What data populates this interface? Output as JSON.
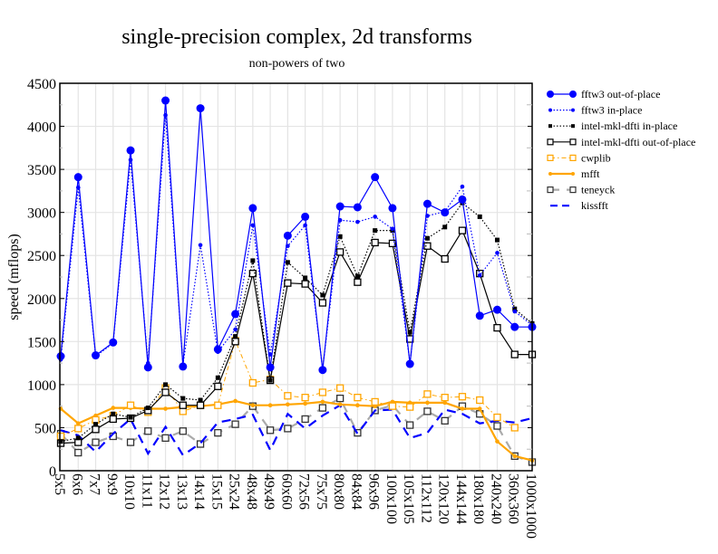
{
  "chart_data": {
    "type": "line",
    "title": "single-precision complex, 2d transforms",
    "subtitle": "non-powers of two",
    "xlabel": "",
    "ylabel": "speed (mflops)",
    "ylim": [
      0,
      4500
    ],
    "yticks": [
      0,
      500,
      1000,
      1500,
      2000,
      2500,
      3000,
      3500,
      4000,
      4500
    ],
    "ytick_labels": [
      "0",
      "500",
      "1000",
      "1500",
      "2000",
      "2500",
      "3000",
      "3500",
      "4000",
      "4500"
    ],
    "grid": true,
    "legend_position": "right",
    "categories": [
      "5x5",
      "6x6",
      "7x7",
      "9x9",
      "10x10",
      "11x11",
      "12x12",
      "13x13",
      "14x14",
      "15x15",
      "25x24",
      "48x48",
      "49x49",
      "60x60",
      "72x56",
      "75x75",
      "80x80",
      "84x84",
      "96x96",
      "100x100",
      "105x105",
      "112x112",
      "120x120",
      "144x144",
      "180x180",
      "240x240",
      "360x360",
      "1000x1000"
    ],
    "series": [
      {
        "name": "fftw3 out-of-place",
        "color": "#0000ff",
        "style": "solid-bigdot",
        "values": [
          1330,
          3410,
          1340,
          1490,
          3720,
          1200,
          4300,
          1210,
          4210,
          1410,
          1820,
          3050,
          1200,
          2730,
          2950,
          1170,
          3070,
          3060,
          3410,
          3050,
          1240,
          3100,
          3000,
          3150,
          1800,
          1870,
          1670,
          1670
        ]
      },
      {
        "name": "fftw3 in-place",
        "color": "#0000ff",
        "style": "dotted-smalldot",
        "values": [
          1290,
          3290,
          1330,
          1480,
          3610,
          1250,
          4130,
          1230,
          2620,
          1380,
          1640,
          2850,
          1350,
          2610,
          2850,
          1180,
          2910,
          2890,
          2950,
          2810,
          1250,
          2960,
          3010,
          3300,
          2270,
          2530,
          1850,
          1690
        ]
      },
      {
        "name": "intel-mkl-dfti in-place",
        "color": "#000000",
        "style": "dotted-filledsquare",
        "values": [
          340,
          380,
          540,
          660,
          620,
          730,
          1000,
          840,
          820,
          1080,
          1560,
          2440,
          1050,
          2420,
          2240,
          2040,
          2720,
          2260,
          2790,
          2790,
          1610,
          2700,
          2830,
          3110,
          2950,
          2680,
          1880,
          1710
        ]
      },
      {
        "name": "intel-mkl-dfti out-of-place",
        "color": "#000000",
        "style": "solid-opensquare",
        "values": [
          320,
          330,
          480,
          600,
          610,
          700,
          910,
          760,
          760,
          980,
          1500,
          2290,
          1050,
          2180,
          2170,
          1950,
          2540,
          2190,
          2650,
          2640,
          1530,
          2610,
          2460,
          2790,
          2290,
          1660,
          1350,
          1350
        ]
      },
      {
        "name": "cwplib",
        "color": "#ffa500",
        "style": "dashdot-opensquare",
        "values": [
          400,
          490,
          590,
          640,
          760,
          680,
          960,
          690,
          760,
          760,
          1510,
          1020,
          1060,
          870,
          850,
          910,
          960,
          850,
          800,
          750,
          740,
          890,
          850,
          860,
          820,
          620,
          500,
          null
        ]
      },
      {
        "name": "mfft",
        "color": "#ffa500",
        "style": "solid-smalldot",
        "values": [
          720,
          550,
          640,
          730,
          730,
          720,
          720,
          740,
          750,
          770,
          810,
          760,
          760,
          770,
          780,
          800,
          770,
          760,
          750,
          800,
          790,
          790,
          790,
          720,
          720,
          340,
          170,
          120
        ]
      },
      {
        "name": "teneyck",
        "color": "#aaaaaa",
        "style": "dashed-opensquare",
        "values": [
          430,
          210,
          330,
          400,
          330,
          460,
          380,
          460,
          310,
          440,
          540,
          750,
          470,
          490,
          600,
          730,
          840,
          440,
          700,
          760,
          530,
          690,
          580,
          750,
          660,
          520,
          170,
          100
        ]
      },
      {
        "name": "kissfft",
        "color": "#0000ff",
        "style": "dashed",
        "values": [
          470,
          410,
          220,
          430,
          600,
          200,
          510,
          180,
          320,
          560,
          600,
          650,
          240,
          660,
          490,
          640,
          760,
          430,
          700,
          710,
          380,
          440,
          710,
          660,
          550,
          580,
          560,
          610
        ]
      }
    ]
  }
}
